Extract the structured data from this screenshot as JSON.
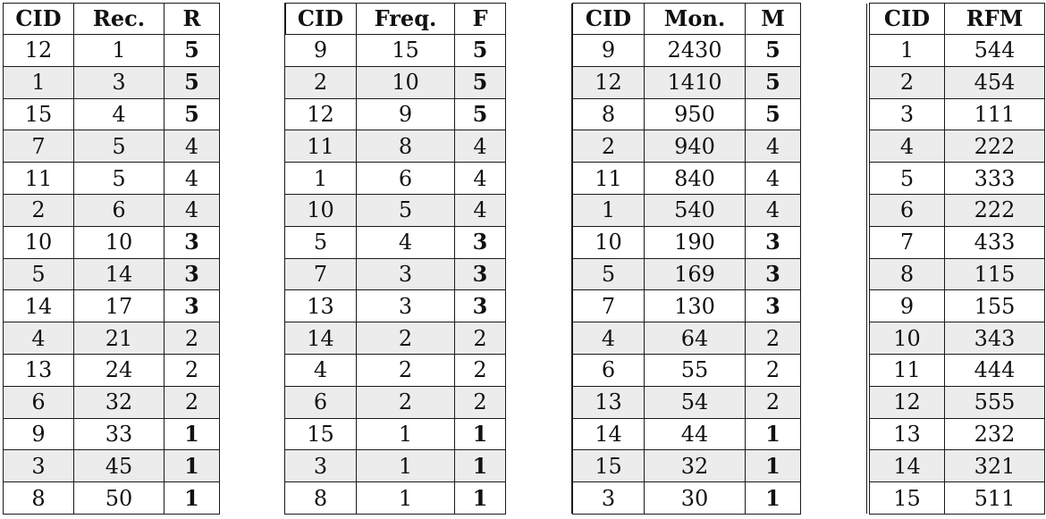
{
  "tables": [
    {
      "headers": [
        "CID",
        "Rec.",
        "R"
      ],
      "rows": [
        [
          "12",
          "1",
          "5"
        ],
        [
          "1",
          "3",
          "5"
        ],
        [
          "15",
          "4",
          "5"
        ],
        [
          "7",
          "5",
          "4"
        ],
        [
          "11",
          "5",
          "4"
        ],
        [
          "2",
          "6",
          "4"
        ],
        [
          "10",
          "10",
          "3"
        ],
        [
          "5",
          "14",
          "3"
        ],
        [
          "14",
          "17",
          "3"
        ],
        [
          "4",
          "21",
          "2"
        ],
        [
          "13",
          "24",
          "2"
        ],
        [
          "6",
          "32",
          "2"
        ],
        [
          "9",
          "33",
          "1"
        ],
        [
          "3",
          "45",
          "1"
        ],
        [
          "8",
          "50",
          "1"
        ]
      ]
    },
    {
      "headers": [
        "CID",
        "Freq.",
        "F"
      ],
      "rows": [
        [
          "9",
          "15",
          "5"
        ],
        [
          "2",
          "10",
          "5"
        ],
        [
          "12",
          "9",
          "5"
        ],
        [
          "11",
          "8",
          "4"
        ],
        [
          "1",
          "6",
          "4"
        ],
        [
          "10",
          "5",
          "4"
        ],
        [
          "5",
          "4",
          "3"
        ],
        [
          "7",
          "3",
          "3"
        ],
        [
          "13",
          "3",
          "3"
        ],
        [
          "14",
          "2",
          "2"
        ],
        [
          "4",
          "2",
          "2"
        ],
        [
          "6",
          "2",
          "2"
        ],
        [
          "15",
          "1",
          "1"
        ],
        [
          "3",
          "1",
          "1"
        ],
        [
          "8",
          "1",
          "1"
        ]
      ]
    },
    {
      "headers": [
        "CID",
        "Mon.",
        "M"
      ],
      "rows": [
        [
          "9",
          "2430",
          "5"
        ],
        [
          "12",
          "1410",
          "5"
        ],
        [
          "8",
          "950",
          "5"
        ],
        [
          "2",
          "940",
          "4"
        ],
        [
          "11",
          "840",
          "4"
        ],
        [
          "1",
          "540",
          "4"
        ],
        [
          "10",
          "190",
          "3"
        ],
        [
          "5",
          "169",
          "3"
        ],
        [
          "7",
          "130",
          "3"
        ],
        [
          "4",
          "64",
          "2"
        ],
        [
          "6",
          "55",
          "2"
        ],
        [
          "13",
          "54",
          "2"
        ],
        [
          "14",
          "44",
          "1"
        ],
        [
          "15",
          "32",
          "1"
        ],
        [
          "3",
          "30",
          "1"
        ]
      ]
    },
    {
      "headers": [
        "CID",
        "RFM"
      ],
      "rows": [
        [
          "1",
          "544"
        ],
        [
          "2",
          "454"
        ],
        [
          "3",
          "111"
        ],
        [
          "4",
          "222"
        ],
        [
          "5",
          "333"
        ],
        [
          "6",
          "222"
        ],
        [
          "7",
          "433"
        ],
        [
          "8",
          "115"
        ],
        [
          "9",
          "155"
        ],
        [
          "10",
          "343"
        ],
        [
          "11",
          "444"
        ],
        [
          "12",
          "555"
        ],
        [
          "13",
          "232"
        ],
        [
          "14",
          "321"
        ],
        [
          "15",
          "511"
        ]
      ]
    }
  ]
}
